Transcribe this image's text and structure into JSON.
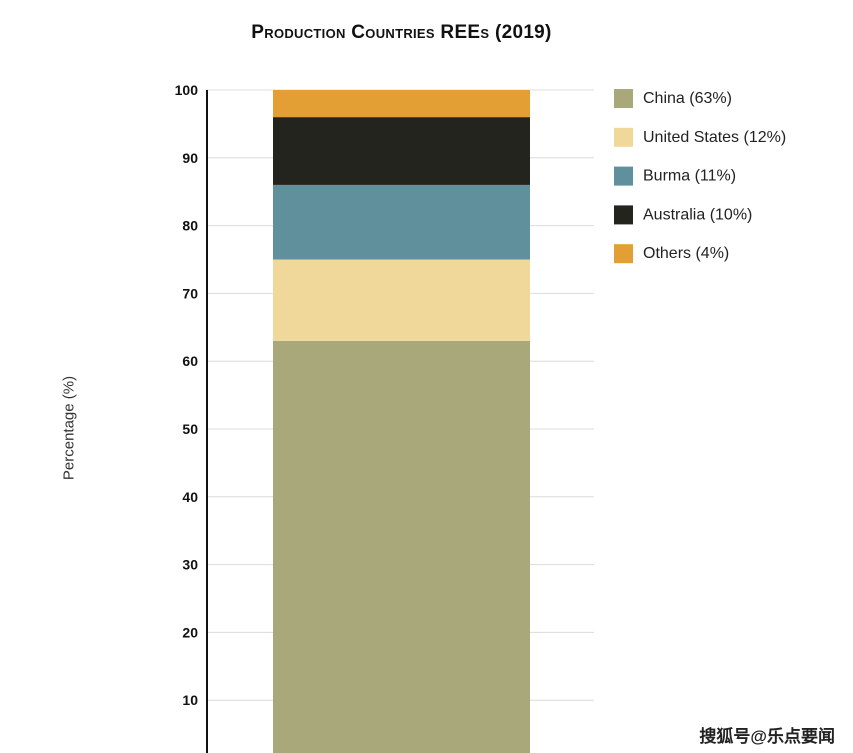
{
  "chart_data": {
    "type": "bar",
    "stacked": true,
    "title": "Production Countries REEs (2019)",
    "ylabel": "Percentage (%)",
    "xlabel": "",
    "ylim": [
      0,
      100
    ],
    "yticks": [
      10,
      20,
      30,
      40,
      50,
      60,
      70,
      80,
      90,
      100
    ],
    "grid": true,
    "legend_position": "right",
    "series": [
      {
        "label": "China (63%)",
        "value": 63,
        "color": "#a8a87a"
      },
      {
        "label": "United States (12%)",
        "value": 12,
        "color": "#f0d89b"
      },
      {
        "label": "Burma (11%)",
        "value": 11,
        "color": "#5f909c"
      },
      {
        "label": "Australia (10%)",
        "value": 10,
        "color": "#24241e"
      },
      {
        "label": "Others (4%)",
        "value": 4,
        "color": "#e39f33"
      }
    ]
  },
  "watermark": "搜狐号@乐点要闻"
}
